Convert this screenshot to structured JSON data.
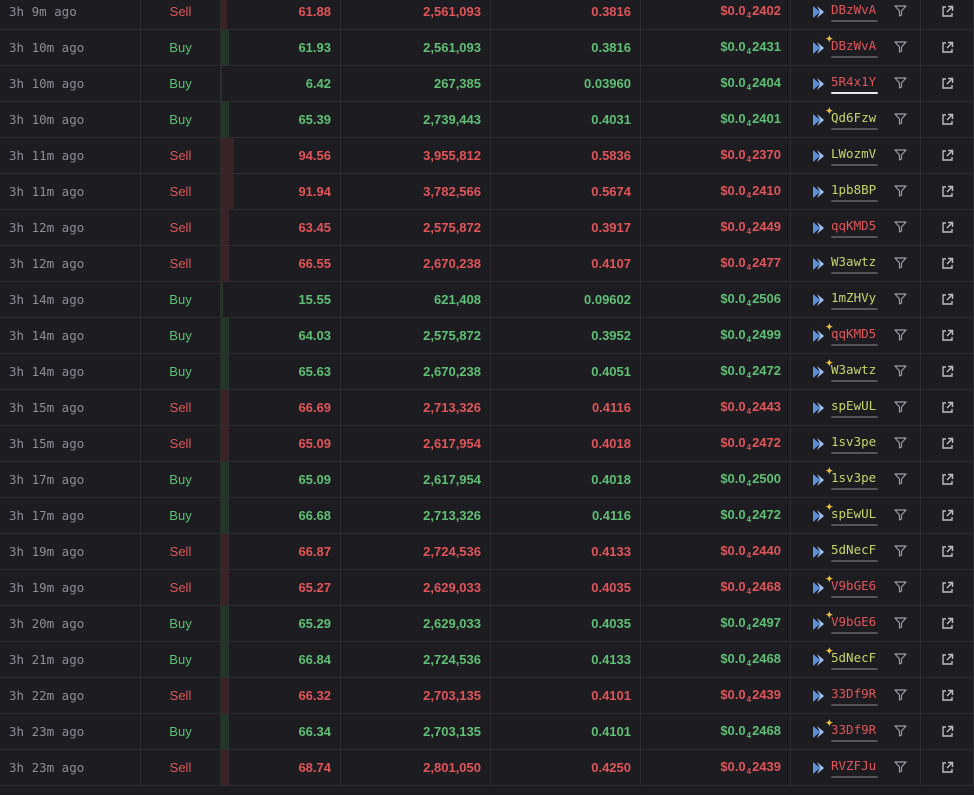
{
  "colors": {
    "buy": "#5fbf75",
    "sell": "#e0555a",
    "maker_green": "#c9d46a",
    "background": "#1c1c21"
  },
  "icons": {
    "bot": "chevron-bot-icon",
    "new": "sparkle-icon",
    "filter": "filter-icon",
    "external": "external-link-icon"
  },
  "rows": [
    {
      "time": "3h 9m ago",
      "type": "Sell",
      "usd": "61.88",
      "tokens": "2,561,093",
      "sol": "0.3816",
      "price_pre": "$0.0",
      "price_sub": "4",
      "price_post": "2402",
      "maker": "DBzWvA",
      "maker_color": "red",
      "new": false,
      "bar": 0.05
    },
    {
      "time": "3h 10m ago",
      "type": "Buy",
      "usd": "61.93",
      "tokens": "2,561,093",
      "sol": "0.3816",
      "price_pre": "$0.0",
      "price_sub": "4",
      "price_post": "2431",
      "maker": "DBzWvA",
      "maker_color": "red",
      "new": true,
      "bar": 0.07
    },
    {
      "time": "3h 10m ago",
      "type": "Buy",
      "usd": "6.42",
      "tokens": "267,385",
      "sol": "0.03960",
      "price_pre": "$0.0",
      "price_sub": "4",
      "price_post": "2404",
      "maker": "5R4x1Y",
      "maker_color": "red",
      "new": false,
      "bar": 0.01,
      "white_line": true
    },
    {
      "time": "3h 10m ago",
      "type": "Buy",
      "usd": "65.39",
      "tokens": "2,739,443",
      "sol": "0.4031",
      "price_pre": "$0.0",
      "price_sub": "4",
      "price_post": "2401",
      "maker": "Qd6Fzw",
      "maker_color": "green",
      "new": true,
      "bar": 0.07
    },
    {
      "time": "3h 11m ago",
      "type": "Sell",
      "usd": "94.56",
      "tokens": "3,955,812",
      "sol": "0.5836",
      "price_pre": "$0.0",
      "price_sub": "4",
      "price_post": "2370",
      "maker": "LWozmV",
      "maker_color": "green",
      "new": false,
      "bar": 0.11
    },
    {
      "time": "3h 11m ago",
      "type": "Sell",
      "usd": "91.94",
      "tokens": "3,782,566",
      "sol": "0.5674",
      "price_pre": "$0.0",
      "price_sub": "4",
      "price_post": "2410",
      "maker": "1pb8BP",
      "maker_color": "green",
      "new": false,
      "bar": 0.11
    },
    {
      "time": "3h 12m ago",
      "type": "Sell",
      "usd": "63.45",
      "tokens": "2,575,872",
      "sol": "0.3917",
      "price_pre": "$0.0",
      "price_sub": "4",
      "price_post": "2449",
      "maker": "qqKMD5",
      "maker_color": "red",
      "new": false,
      "bar": 0.07
    },
    {
      "time": "3h 12m ago",
      "type": "Sell",
      "usd": "66.55",
      "tokens": "2,670,238",
      "sol": "0.4107",
      "price_pre": "$0.0",
      "price_sub": "4",
      "price_post": "2477",
      "maker": "W3awtz",
      "maker_color": "green",
      "new": false,
      "bar": 0.07
    },
    {
      "time": "3h 14m ago",
      "type": "Buy",
      "usd": "15.55",
      "tokens": "621,408",
      "sol": "0.09602",
      "price_pre": "$0.0",
      "price_sub": "4",
      "price_post": "2506",
      "maker": "1mZHVy",
      "maker_color": "green",
      "new": false,
      "bar": 0.02
    },
    {
      "time": "3h 14m ago",
      "type": "Buy",
      "usd": "64.03",
      "tokens": "2,575,872",
      "sol": "0.3952",
      "price_pre": "$0.0",
      "price_sub": "4",
      "price_post": "2499",
      "maker": "qqKMD5",
      "maker_color": "red",
      "new": true,
      "bar": 0.07
    },
    {
      "time": "3h 14m ago",
      "type": "Buy",
      "usd": "65.63",
      "tokens": "2,670,238",
      "sol": "0.4051",
      "price_pre": "$0.0",
      "price_sub": "4",
      "price_post": "2472",
      "maker": "W3awtz",
      "maker_color": "green",
      "new": true,
      "bar": 0.07
    },
    {
      "time": "3h 15m ago",
      "type": "Sell",
      "usd": "66.69",
      "tokens": "2,713,326",
      "sol": "0.4116",
      "price_pre": "$0.0",
      "price_sub": "4",
      "price_post": "2443",
      "maker": "spEwUL",
      "maker_color": "green",
      "new": false,
      "bar": 0.07
    },
    {
      "time": "3h 15m ago",
      "type": "Sell",
      "usd": "65.09",
      "tokens": "2,617,954",
      "sol": "0.4018",
      "price_pre": "$0.0",
      "price_sub": "4",
      "price_post": "2472",
      "maker": "1sv3pe",
      "maker_color": "green",
      "new": false,
      "bar": 0.07
    },
    {
      "time": "3h 17m ago",
      "type": "Buy",
      "usd": "65.09",
      "tokens": "2,617,954",
      "sol": "0.4018",
      "price_pre": "$0.0",
      "price_sub": "4",
      "price_post": "2500",
      "maker": "1sv3pe",
      "maker_color": "green",
      "new": true,
      "bar": 0.07
    },
    {
      "time": "3h 17m ago",
      "type": "Buy",
      "usd": "66.68",
      "tokens": "2,713,326",
      "sol": "0.4116",
      "price_pre": "$0.0",
      "price_sub": "4",
      "price_post": "2472",
      "maker": "spEwUL",
      "maker_color": "green",
      "new": true,
      "bar": 0.07
    },
    {
      "time": "3h 19m ago",
      "type": "Sell",
      "usd": "66.87",
      "tokens": "2,724,536",
      "sol": "0.4133",
      "price_pre": "$0.0",
      "price_sub": "4",
      "price_post": "2440",
      "maker": "5dNecF",
      "maker_color": "green",
      "new": false,
      "bar": 0.07
    },
    {
      "time": "3h 19m ago",
      "type": "Sell",
      "usd": "65.27",
      "tokens": "2,629,033",
      "sol": "0.4035",
      "price_pre": "$0.0",
      "price_sub": "4",
      "price_post": "2468",
      "maker": "V9bGE6",
      "maker_color": "red",
      "new": true,
      "bar": 0.07
    },
    {
      "time": "3h 20m ago",
      "type": "Buy",
      "usd": "65.29",
      "tokens": "2,629,033",
      "sol": "0.4035",
      "price_pre": "$0.0",
      "price_sub": "4",
      "price_post": "2497",
      "maker": "V9bGE6",
      "maker_color": "red",
      "new": true,
      "bar": 0.07
    },
    {
      "time": "3h 21m ago",
      "type": "Buy",
      "usd": "66.84",
      "tokens": "2,724,536",
      "sol": "0.4133",
      "price_pre": "$0.0",
      "price_sub": "4",
      "price_post": "2468",
      "maker": "5dNecF",
      "maker_color": "green",
      "new": true,
      "bar": 0.07
    },
    {
      "time": "3h 22m ago",
      "type": "Sell",
      "usd": "66.32",
      "tokens": "2,703,135",
      "sol": "0.4101",
      "price_pre": "$0.0",
      "price_sub": "4",
      "price_post": "2439",
      "maker": "33Df9R",
      "maker_color": "red",
      "new": false,
      "bar": 0.07
    },
    {
      "time": "3h 23m ago",
      "type": "Buy",
      "usd": "66.34",
      "tokens": "2,703,135",
      "sol": "0.4101",
      "price_pre": "$0.0",
      "price_sub": "4",
      "price_post": "2468",
      "maker": "33Df9R",
      "maker_color": "red",
      "new": true,
      "bar": 0.07
    },
    {
      "time": "3h 23m ago",
      "type": "Sell",
      "usd": "68.74",
      "tokens": "2,801,050",
      "sol": "0.4250",
      "price_pre": "$0.0",
      "price_sub": "4",
      "price_post": "2439",
      "maker": "RVZFJu",
      "maker_color": "red",
      "new": false,
      "bar": 0.07
    }
  ]
}
